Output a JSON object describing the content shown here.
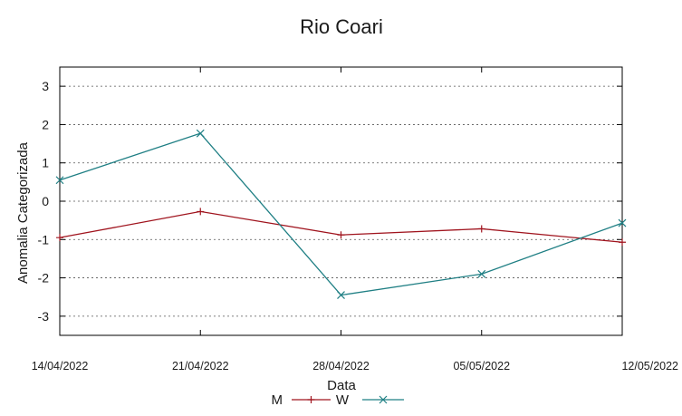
{
  "chart_data": {
    "type": "line",
    "title": "Rio Coari",
    "xlabel": "Data",
    "ylabel": "Anomalia Categorizada",
    "categories": [
      "14/04/2022",
      "21/04/2022",
      "28/04/2022",
      "05/05/2022",
      "12/05/2022"
    ],
    "yticks": [
      3,
      2,
      1,
      0,
      -1,
      -2,
      -3
    ],
    "ylim": [
      -3.5,
      3.5
    ],
    "grid": "horizontal dotted",
    "legend_position": "bottom",
    "series": [
      {
        "name": "M",
        "values": [
          -0.95,
          -0.27,
          -0.88,
          -0.72,
          -1.07
        ],
        "color": "#a0141e",
        "marker": "+"
      },
      {
        "name": "W",
        "values": [
          0.55,
          1.77,
          -2.45,
          -1.9,
          -0.57
        ],
        "color": "#1f7f84",
        "marker": "x"
      }
    ]
  }
}
